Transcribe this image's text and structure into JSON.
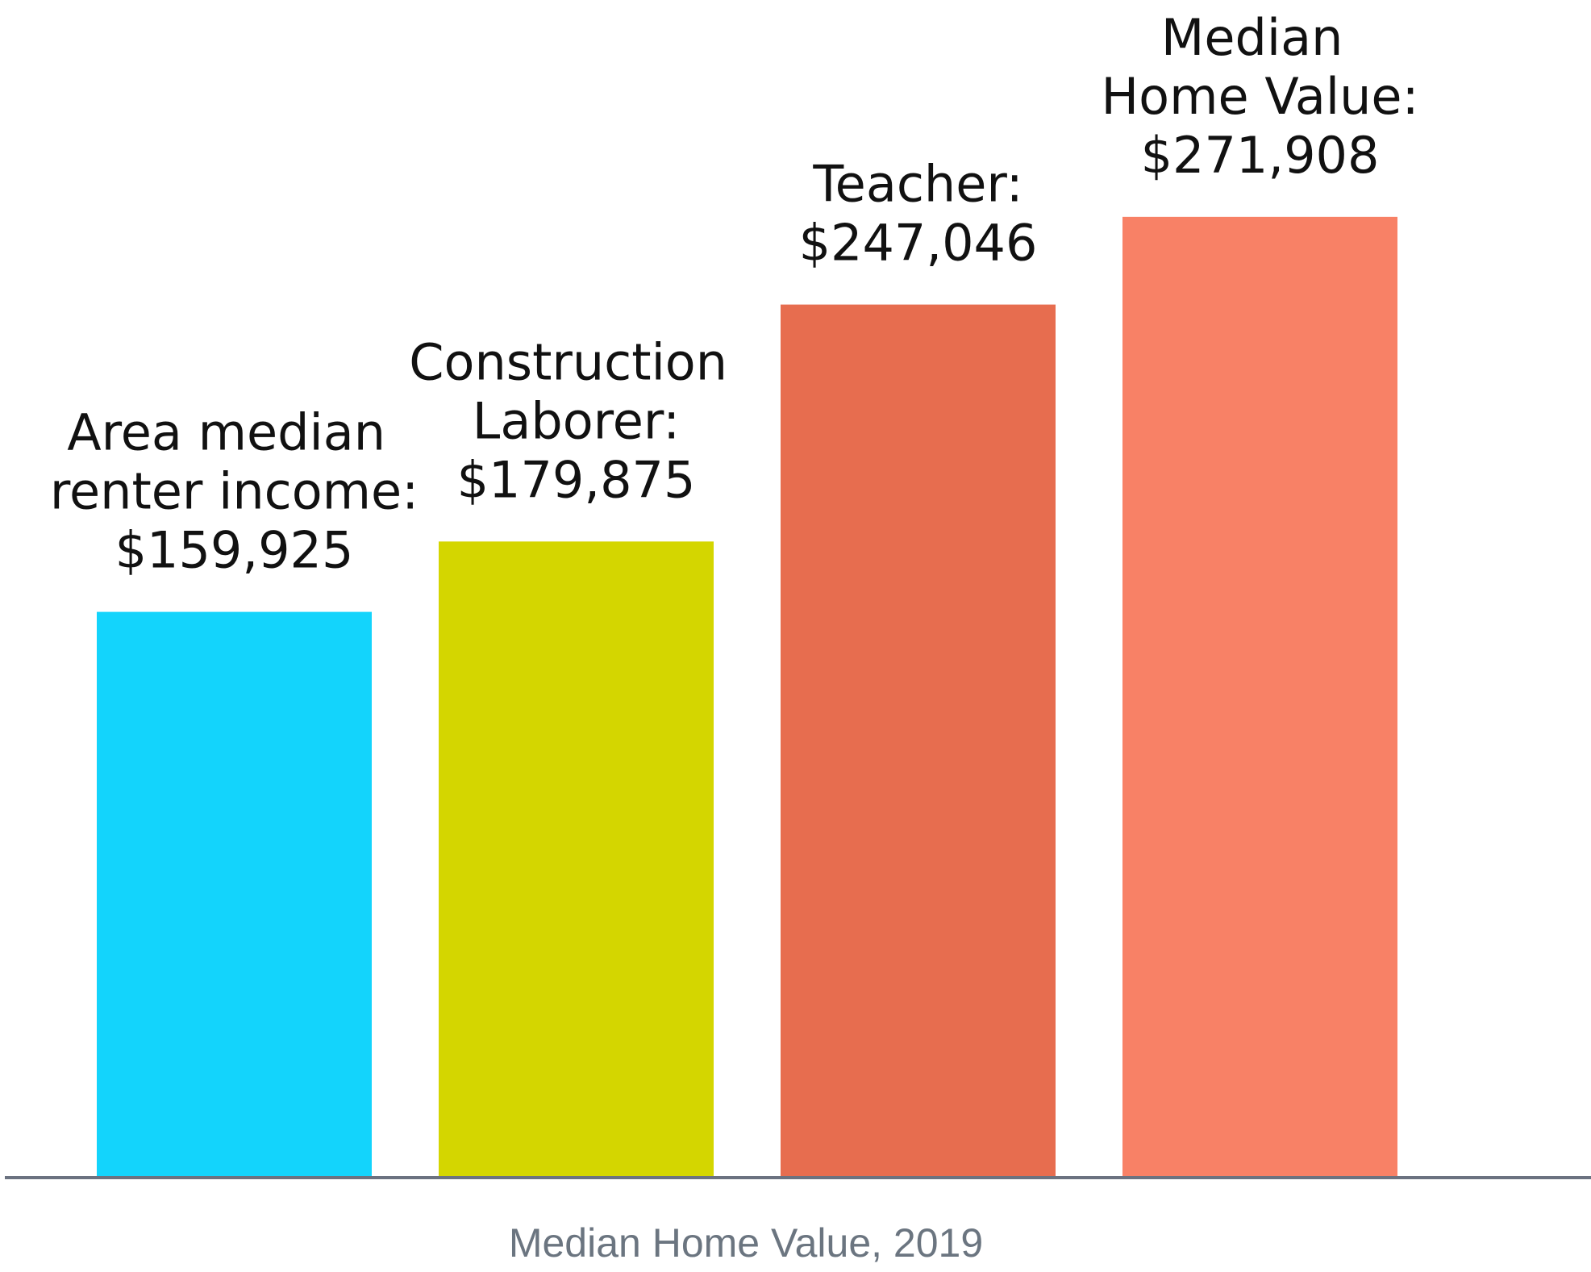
{
  "chart_data": {
    "type": "bar",
    "x_label": "Median Home Value, 2019",
    "categories": [
      "Area median\nrenter income:",
      "Construction\nLaborer:",
      "Teacher:",
      "Median\nHome Value:"
    ],
    "values": [
      159925,
      179875,
      247046,
      271908
    ],
    "value_labels": [
      "$159,925",
      "$179,875",
      "$247,046",
      "$271,908"
    ],
    "colors": [
      "#13d4fc",
      "#d4d600",
      "#e76d4f",
      "#f88166"
    ],
    "ylim": [
      0,
      300000
    ]
  }
}
